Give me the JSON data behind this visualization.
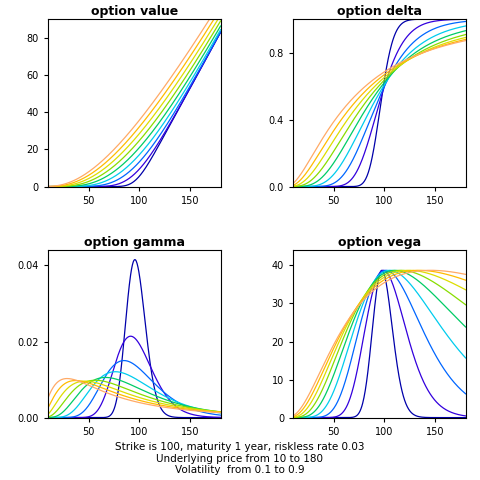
{
  "subplot_titles": [
    "option value",
    "option delta",
    "option gamma",
    "option vega"
  ],
  "S_min": 10,
  "S_max": 180,
  "K": 100,
  "T": 1,
  "r": 0.03,
  "sigma_min": 0.1,
  "sigma_max": 0.9,
  "n_sigma": 9,
  "xlabel_text": "Strike is 100, maturity 1 year, riskless rate 0.03\nUnderlying price from 10 to 180\nVolatility  from 0.1 to 0.9",
  "value_ylim": [
    0,
    90
  ],
  "delta_ylim": [
    0,
    1.0
  ],
  "gamma_ylim": [
    0,
    0.044
  ],
  "vega_ylim": [
    0,
    44
  ],
  "value_yticks": [
    0,
    20,
    40,
    60,
    80
  ],
  "delta_yticks": [
    0.0,
    0.4,
    0.8
  ],
  "gamma_yticks": [
    0.0,
    0.02,
    0.04
  ],
  "vega_yticks": [
    0,
    10,
    20,
    30,
    40
  ],
  "xticks": [
    50,
    100,
    150
  ],
  "figsize": [
    4.8,
    4.8
  ],
  "dpi": 100,
  "background": "white",
  "colors": [
    "#0000aa",
    "#3300dd",
    "#0066ff",
    "#00ccee",
    "#00cc66",
    "#88dd00",
    "#dddd00",
    "#ffbb00",
    "#ffaa66"
  ]
}
